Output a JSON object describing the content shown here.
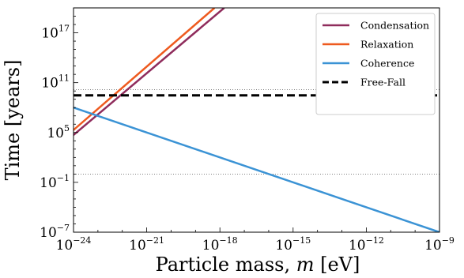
{
  "chart_data": {
    "type": "line",
    "xlabel_prefix": "Particle mass, ",
    "xlabel_var": "m",
    "xlabel_suffix": " [eV]",
    "ylabel": "Time [years]",
    "x_scale": "log",
    "y_scale": "log",
    "xlim": [
      1e-24,
      1e-09
    ],
    "ylim": [
      1e-07,
      1e+20
    ],
    "x_ticks": [
      {
        "base": "10",
        "exp": "−24",
        "value": 1e-24
      },
      {
        "base": "10",
        "exp": "−21",
        "value": 1e-21
      },
      {
        "base": "10",
        "exp": "−18",
        "value": 1e-18
      },
      {
        "base": "10",
        "exp": "−15",
        "value": 1e-15
      },
      {
        "base": "10",
        "exp": "−12",
        "value": 1e-12
      },
      {
        "base": "10",
        "exp": "−9",
        "value": 1e-09
      }
    ],
    "y_ticks": [
      {
        "base": "10",
        "exp": "−7",
        "value": 1e-07
      },
      {
        "base": "10",
        "exp": "−1",
        "value": 0.1
      },
      {
        "base": "10",
        "exp": "5",
        "value": 100000.0
      },
      {
        "base": "10",
        "exp": "11",
        "value": 100000000000.0
      },
      {
        "base": "10",
        "exp": "17",
        "value": 1e+17
      }
    ],
    "reference_lines": [
      {
        "kind": "dotted-horizontal",
        "y": 14000000000.0
      },
      {
        "kind": "dotted-horizontal",
        "y": 1.0
      }
    ],
    "series": [
      {
        "name": "Condensation",
        "color": "#8f2c5c",
        "style": "solid",
        "x": [
          1e-24,
          1.5e-18
        ],
        "y": [
          50000,
          1e+20
        ]
      },
      {
        "name": "Relaxation",
        "color": "#ee5a1f",
        "style": "solid",
        "x": [
          1e-24,
          6e-19
        ],
        "y": [
          200000,
          1e+20
        ]
      },
      {
        "name": "Coherence",
        "color": "#3b93d5",
        "style": "solid",
        "x": [
          1e-24,
          1e-09
        ],
        "y": [
          100000000.0,
          1e-07
        ]
      },
      {
        "name": "Free-Fall",
        "color": "#000000",
        "style": "dashed",
        "x": [
          1e-24,
          1e-09
        ],
        "y": [
          3000000000.0,
          3000000000.0
        ]
      }
    ],
    "legend_position": "top-right",
    "grid": false
  }
}
